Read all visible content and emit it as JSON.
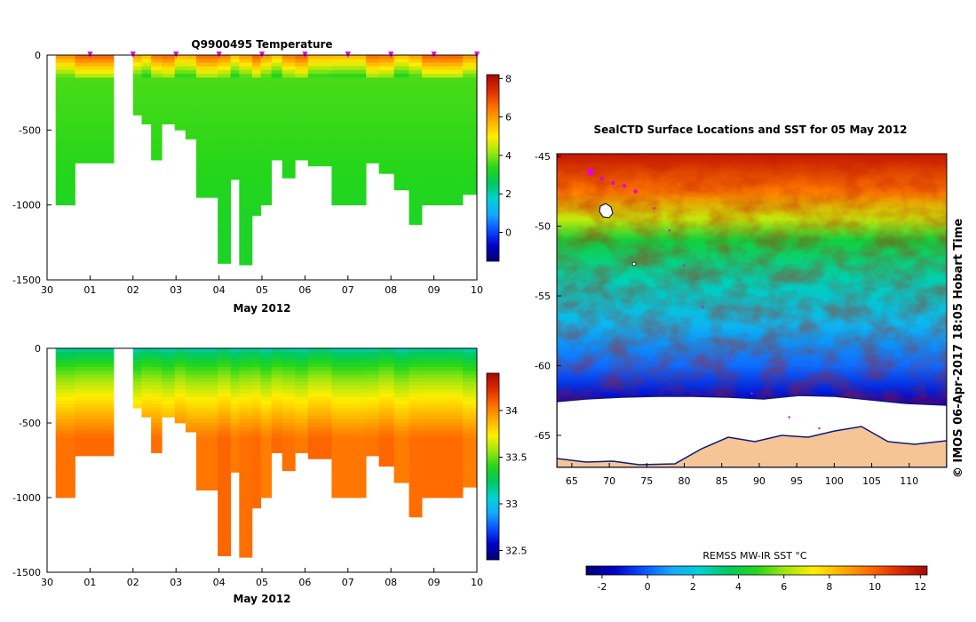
{
  "chart_data": [
    {
      "id": "temperature",
      "type": "heatmap",
      "title": "Q9900495  Temperature",
      "xlabel": "May 2012",
      "x_ticks": [
        "30",
        "01",
        "02",
        "03",
        "04",
        "05",
        "06",
        "07",
        "08",
        "09",
        "10"
      ],
      "y_ticks": [
        "0",
        "-500",
        "-1000",
        "-1500"
      ],
      "ylim": [
        -1500,
        0
      ],
      "xlim_days": [
        0,
        10
      ],
      "colorbar": {
        "ticks": [
          "8",
          "6",
          "4",
          "2",
          "0"
        ],
        "range": [
          -1.5,
          8.2
        ]
      },
      "profile_markers": [
        1,
        2,
        3,
        4,
        5,
        6,
        7,
        8,
        9,
        10
      ],
      "surface_value": 6.2,
      "mid_value": 3.6,
      "deep_value": 3.2
    },
    {
      "id": "salinity",
      "type": "heatmap",
      "title": "",
      "xlabel": "May 2012",
      "x_ticks": [
        "30",
        "01",
        "02",
        "03",
        "04",
        "05",
        "06",
        "07",
        "08",
        "09",
        "10"
      ],
      "y_ticks": [
        "0",
        "-500",
        "-1000",
        "-1500"
      ],
      "ylim": [
        -1500,
        0
      ],
      "xlim_days": [
        0,
        10
      ],
      "colorbar": {
        "ticks": [
          "34",
          "33.5",
          "33",
          "32.5"
        ],
        "range": [
          32.4,
          34.4
        ]
      },
      "surface_value": 33.1,
      "deep_value": 34.05
    },
    {
      "id": "sst-map",
      "type": "heatmap",
      "title": "SealCTD Surface Locations and SST for 05 May 2012",
      "x_ticks": [
        "65",
        "70",
        "75",
        "80",
        "85",
        "90",
        "95",
        "100",
        "105",
        "110"
      ],
      "y_ticks": [
        "-45",
        "-50",
        "-55",
        "-60",
        "-65"
      ],
      "lon_range": [
        63,
        115
      ],
      "lat_range": [
        -67.3,
        -44.8
      ],
      "colorbar_label": "REMSS MW-IR SST °C",
      "colorbar": {
        "ticks": [
          "-2",
          "0",
          "2",
          "4",
          "6",
          "8",
          "10",
          "12"
        ],
        "range": [
          -2.7,
          12.3
        ]
      },
      "track": [
        [
          67.5,
          -46.1
        ],
        [
          69.0,
          -46.6
        ],
        [
          70.5,
          -46.9
        ],
        [
          72.0,
          -47.1
        ],
        [
          73.5,
          -47.5
        ],
        [
          76.0,
          -48.7
        ],
        [
          78.0,
          -50.3
        ],
        [
          80.0,
          -52.8
        ],
        [
          82.5,
          -55.8
        ],
        [
          86.0,
          -59.5
        ],
        [
          89.0,
          -62.0
        ],
        [
          94.0,
          -63.7
        ],
        [
          98.0,
          -64.5
        ]
      ]
    }
  ],
  "profiles": [
    {
      "t": 0.2,
      "w": 0.45,
      "depth": 1000
    },
    {
      "t": 0.65,
      "w": 0.9,
      "depth": 720
    },
    {
      "t": 2.0,
      "w": 0.2,
      "depth": 400
    },
    {
      "t": 2.2,
      "w": 0.22,
      "depth": 460
    },
    {
      "t": 2.42,
      "w": 0.25,
      "depth": 700
    },
    {
      "t": 2.67,
      "w": 0.3,
      "depth": 460
    },
    {
      "t": 2.97,
      "w": 0.25,
      "depth": 500
    },
    {
      "t": 3.22,
      "w": 0.25,
      "depth": 560
    },
    {
      "t": 3.47,
      "w": 0.5,
      "depth": 950
    },
    {
      "t": 3.97,
      "w": 0.3,
      "depth": 1390
    },
    {
      "t": 4.27,
      "w": 0.2,
      "depth": 830
    },
    {
      "t": 4.47,
      "w": 0.3,
      "depth": 1400
    },
    {
      "t": 4.77,
      "w": 0.2,
      "depth": 1070
    },
    {
      "t": 4.97,
      "w": 0.25,
      "depth": 1000
    },
    {
      "t": 5.22,
      "w": 0.25,
      "depth": 700
    },
    {
      "t": 5.47,
      "w": 0.3,
      "depth": 820
    },
    {
      "t": 5.77,
      "w": 0.3,
      "depth": 700
    },
    {
      "t": 6.07,
      "w": 0.55,
      "depth": 740
    },
    {
      "t": 6.62,
      "w": 0.8,
      "depth": 1000
    },
    {
      "t": 7.42,
      "w": 0.3,
      "depth": 720
    },
    {
      "t": 7.72,
      "w": 0.35,
      "depth": 790
    },
    {
      "t": 8.07,
      "w": 0.35,
      "depth": 900
    },
    {
      "t": 8.42,
      "w": 0.3,
      "depth": 1130
    },
    {
      "t": 8.72,
      "w": 0.95,
      "depth": 1000
    },
    {
      "t": 9.67,
      "w": 0.38,
      "depth": 930
    }
  ],
  "colors": {
    "scale": [
      "#000070",
      "#0000c8",
      "#0a50ff",
      "#15a8ff",
      "#00d2d2",
      "#00c860",
      "#24d61a",
      "#9ee610",
      "#ffee00",
      "#ffae00",
      "#ff6a00",
      "#dc2a00",
      "#a50a00"
    ],
    "marker": "#e400e4",
    "land": "#f6c596",
    "ice_edge": "#0a1a80"
  },
  "credit": "© IMOS 06-Apr-2017 18:05 Hobart Time"
}
